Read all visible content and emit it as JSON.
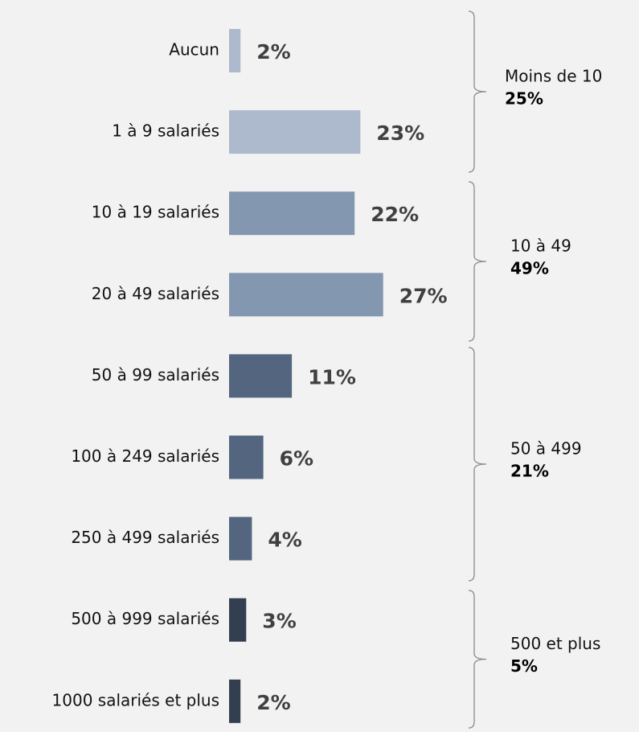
{
  "chart_data": {
    "type": "bar",
    "categories": [
      "Aucun",
      "1 à 9 salariés",
      "10 à 19 salariés",
      "20 à 49 salariés",
      "50 à 99 salariés",
      "100 à 249 salariés",
      "250 à 499 salariés",
      "500 à 999 salariés",
      "1000 salariés et plus"
    ],
    "values": [
      2,
      23,
      22,
      27,
      11,
      6,
      4,
      3,
      2
    ],
    "value_labels": [
      "2%",
      "23%",
      "22%",
      "27%",
      "11%",
      "6%",
      "4%",
      "3%",
      "2%"
    ],
    "colors": [
      "#adb9cc",
      "#adb9cc",
      "#8497b0",
      "#8497b0",
      "#53657f",
      "#53657f",
      "#53657f",
      "#333f50",
      "#333f50"
    ],
    "groups": [
      {
        "name": "Moins de 10",
        "value": 25,
        "value_label": "25%"
      },
      {
        "name": "10 à 49",
        "value": 49,
        "value_label": "49%"
      },
      {
        "name": "50 à 499",
        "value": 21,
        "value_label": "21%"
      },
      {
        "name": "500 et plus",
        "value": 5,
        "value_label": "5%"
      }
    ]
  }
}
